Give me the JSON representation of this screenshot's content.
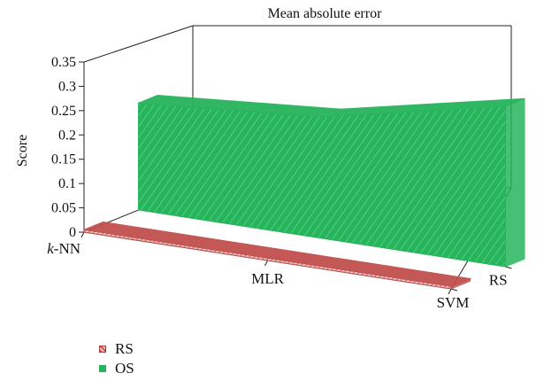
{
  "chart_data": {
    "type": "area",
    "title": "Mean absolute error",
    "xlabel": "",
    "ylabel": "Score",
    "categories": [
      "k-NN",
      "MLR",
      "SVM"
    ],
    "category_labels": [
      {
        "italic": "k",
        "rest": "-NN"
      },
      {
        "italic": "",
        "rest": "MLR"
      },
      {
        "italic": "",
        "rest": "SVM"
      }
    ],
    "y_ticks": [
      "0",
      "0.05",
      "0.1",
      "0.15",
      "0.2",
      "0.25",
      "0.3",
      "0.35"
    ],
    "ylim": [
      0,
      0.35
    ],
    "depth_labels": [
      "RS",
      "OS"
    ],
    "series": [
      {
        "name": "RS",
        "values": [
          0.005,
          0.005,
          0.005
        ],
        "color": "#c0504d"
      },
      {
        "name": "OS",
        "values": [
          0.22,
          0.25,
          0.33
        ],
        "color": "#27b45c"
      }
    ],
    "grid": false,
    "legend_position": "bottom-left"
  },
  "legend": {
    "items": [
      {
        "label": "RS",
        "color": "#c0504d"
      },
      {
        "label": "OS",
        "color": "#27b45c"
      }
    ]
  }
}
